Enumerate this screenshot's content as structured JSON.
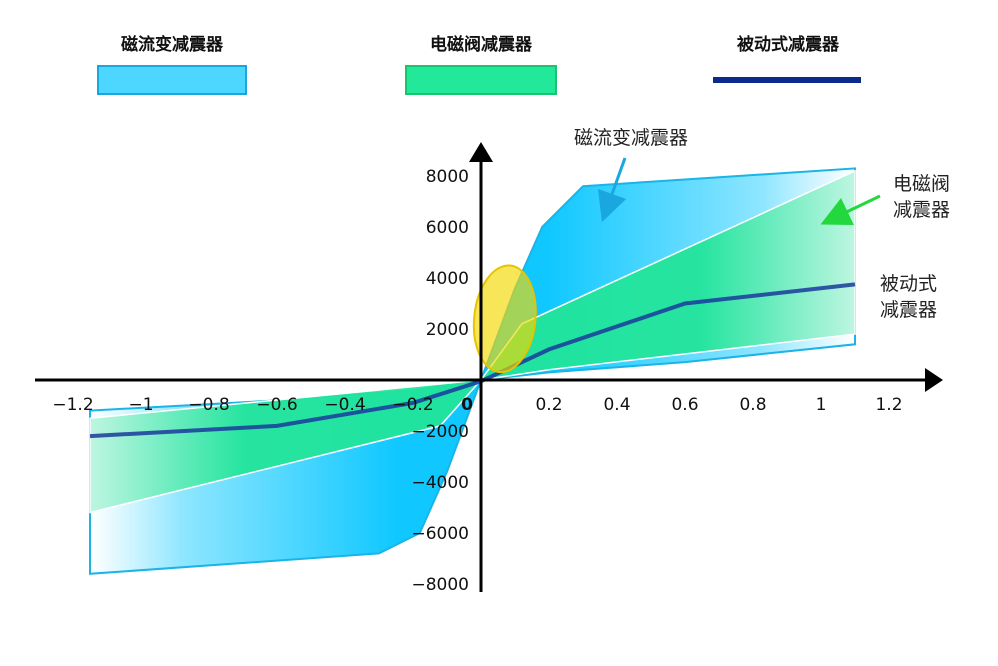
{
  "legend": {
    "items": [
      {
        "label": "磁流变减震器",
        "color": "#4dd6ff",
        "border": "#1aa7e0",
        "kind": "box"
      },
      {
        "label": "电磁阀减震器",
        "color": "#22e89a",
        "border": "#19c46d",
        "kind": "box"
      },
      {
        "label": "被动式减震器",
        "color": "#0a2a8c",
        "kind": "line"
      }
    ]
  },
  "annotations": {
    "mr_label": "磁流变减震器",
    "solenoid_label_line1": "电磁阀",
    "solenoid_label_line2": "减震器",
    "passive_label_line1": "被动式",
    "passive_label_line2": "减震器"
  },
  "chart_data": {
    "type": "area",
    "title": "",
    "xlabel": "",
    "ylabel": "",
    "xlim": [
      -1.3,
      1.35
    ],
    "ylim": [
      -8300,
      9300
    ],
    "x_ticks": [
      {
        "v": -1.2,
        "label": "−1.2"
      },
      {
        "v": -1.0,
        "label": "−1"
      },
      {
        "v": -0.8,
        "label": "−0.8"
      },
      {
        "v": -0.6,
        "label": "−0.6"
      },
      {
        "v": -0.4,
        "label": "−0.4"
      },
      {
        "v": -0.2,
        "label": "−0.2"
      },
      {
        "v": 0,
        "label": "0"
      },
      {
        "v": 0.2,
        "label": "0.2"
      },
      {
        "v": 0.4,
        "label": "0.4"
      },
      {
        "v": 0.6,
        "label": "0.6"
      },
      {
        "v": 0.8,
        "label": "0.8"
      },
      {
        "v": 1.0,
        "label": "1"
      },
      {
        "v": 1.2,
        "label": "1.2"
      }
    ],
    "y_ticks": [
      {
        "v": 8000,
        "label": "8000"
      },
      {
        "v": 6000,
        "label": "6000"
      },
      {
        "v": 4000,
        "label": "4000"
      },
      {
        "v": 2000,
        "label": "2000"
      },
      {
        "v": -2000,
        "label": "−2000"
      },
      {
        "v": -4000,
        "label": "−4000"
      },
      {
        "v": -6000,
        "label": "−6000"
      },
      {
        "v": -8000,
        "label": "−8000"
      }
    ],
    "series": [
      {
        "name": "磁流变减震器",
        "kind": "band",
        "upper": [
          [
            -1.15,
            -1200
          ],
          [
            -0.6,
            -800
          ],
          [
            -0.2,
            -400
          ],
          [
            0,
            0
          ],
          [
            0.1,
            3600
          ],
          [
            0.18,
            6000
          ],
          [
            0.3,
            7600
          ],
          [
            1.1,
            8300
          ]
        ],
        "lower": [
          [
            -1.15,
            -7600
          ],
          [
            -0.3,
            -6800
          ],
          [
            -0.18,
            -6000
          ],
          [
            -0.1,
            -3600
          ],
          [
            0,
            0
          ],
          [
            0.2,
            300
          ],
          [
            0.6,
            700
          ],
          [
            1.1,
            1400
          ]
        ]
      },
      {
        "name": "电磁阀减震器",
        "kind": "band",
        "upper": [
          [
            -1.15,
            -1500
          ],
          [
            0,
            0
          ],
          [
            0.12,
            2200
          ],
          [
            1.1,
            8200
          ]
        ],
        "lower": [
          [
            -1.15,
            -5200
          ],
          [
            -0.12,
            -1800
          ],
          [
            0,
            0
          ],
          [
            0.2,
            400
          ],
          [
            1.1,
            1800
          ]
        ]
      },
      {
        "name": "被动式减震器",
        "kind": "line",
        "points": [
          [
            -1.15,
            -2200
          ],
          [
            -0.6,
            -1800
          ],
          [
            -0.2,
            -900
          ],
          [
            0,
            -50
          ],
          [
            0.2,
            1200
          ],
          [
            0.6,
            3000
          ],
          [
            1.1,
            3750
          ]
        ]
      }
    ],
    "annotations": [
      {
        "kind": "ellipse",
        "cx": 0.07,
        "cy": 2400,
        "rx": 0.09,
        "ry": 2100,
        "color": "#f5d800"
      }
    ]
  }
}
